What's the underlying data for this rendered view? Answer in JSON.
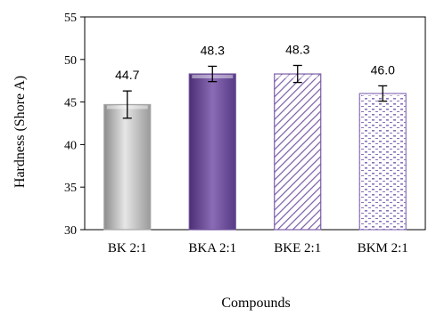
{
  "chart_data": {
    "type": "bar",
    "categories": [
      "BK 2:1",
      "BKA 2:1",
      "BKE 2:1",
      "BKM 2:1"
    ],
    "values": [
      44.7,
      48.3,
      48.3,
      46.0
    ],
    "value_labels": [
      "44.7",
      "48.3",
      "48.3",
      "46.0"
    ],
    "error": [
      1.6,
      0.9,
      1.0,
      0.9
    ],
    "xlabel": "Compounds",
    "ylabel": "Hardness  (Shore A)",
    "ylim": [
      30,
      55
    ],
    "yticks": [
      "30",
      "35",
      "40",
      "45",
      "50",
      "55"
    ],
    "grid": false,
    "legend": "none",
    "bar_styles": [
      {
        "fill": "gray-gradient",
        "color": "#a6a6a6"
      },
      {
        "fill": "purple-gradient",
        "color": "#6f4f9a"
      },
      {
        "fill": "diagonal-hatch",
        "color": "#7b5da6"
      },
      {
        "fill": "dotted",
        "color": "#8a73b8"
      }
    ]
  }
}
